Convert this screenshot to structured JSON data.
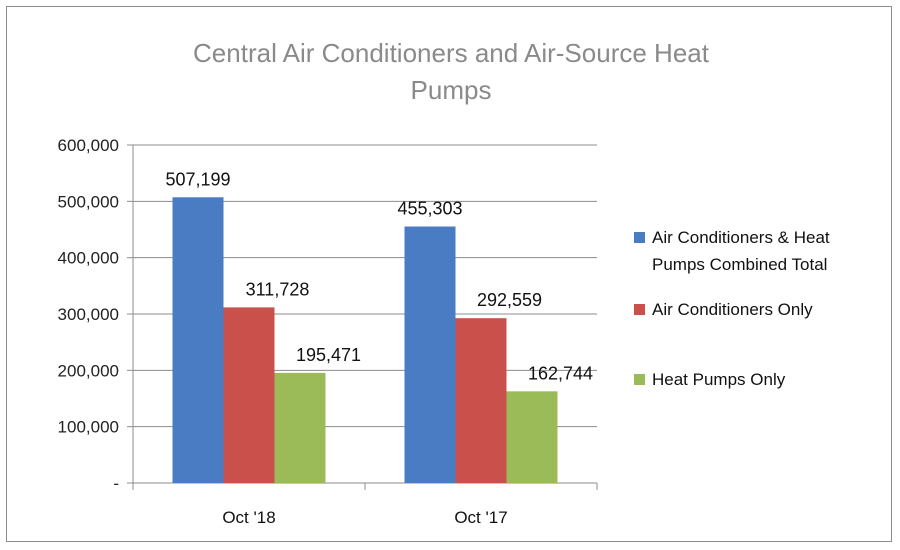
{
  "chart_data": {
    "type": "bar",
    "title": "Central Air Conditioners and Air-Source Heat Pumps",
    "title_lines": [
      "Central Air Conditioners and Air-Source Heat",
      "Pumps"
    ],
    "categories": [
      "Oct '18",
      "Oct '17"
    ],
    "series": [
      {
        "name": "Air Conditioners & Heat Pumps Combined Total",
        "legend_lines": [
          "Air Conditioners & Heat",
          "Pumps Combined Total"
        ],
        "values": [
          507199,
          455303
        ],
        "labels": [
          "507,199",
          "455,303"
        ],
        "color": "#4a7cc4"
      },
      {
        "name": "Air Conditioners Only",
        "legend_lines": [
          "Air Conditioners Only"
        ],
        "values": [
          311728,
          292559
        ],
        "labels": [
          "311,728",
          "292,559"
        ],
        "color": "#c9504b"
      },
      {
        "name": "Heat Pumps Only",
        "legend_lines": [
          "Heat Pumps Only"
        ],
        "values": [
          195471,
          162744
        ],
        "labels": [
          "195,471",
          "162,744"
        ],
        "color": "#9bbb59"
      }
    ],
    "ylim": [
      0,
      600000
    ],
    "y_ticks": [
      0,
      100000,
      200000,
      300000,
      400000,
      500000,
      600000
    ],
    "y_tick_labels": [
      "-",
      "100,000",
      "200,000",
      "300,000",
      "400,000",
      "500,000",
      "600,000"
    ],
    "grid": true,
    "legend_position": "right"
  }
}
